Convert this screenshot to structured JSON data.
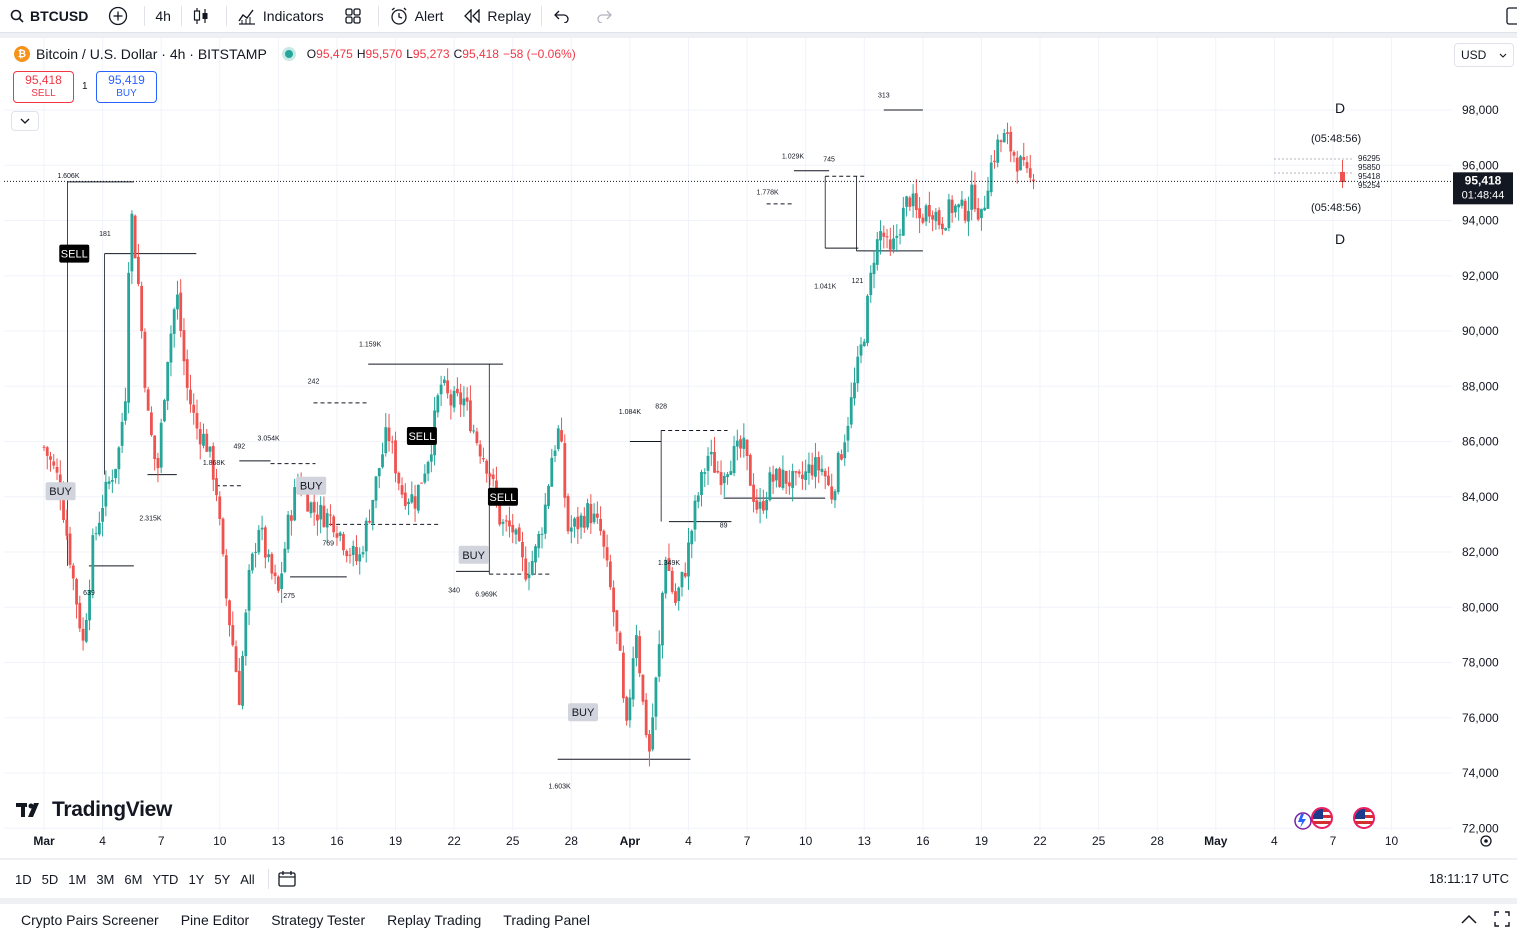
{
  "toolbar": {
    "symbol": "BTCUSD",
    "interval": "4h",
    "indicators_label": "Indicators",
    "alert_label": "Alert",
    "replay_label": "Replay"
  },
  "legend": {
    "title": "Bitcoin / U.S. Dollar · 4h · BITSTAMP",
    "coin_glyph": "₿",
    "ohlc": [
      {
        "k": "O",
        "v": "95,475"
      },
      {
        "k": "H",
        "v": "95,570"
      },
      {
        "k": "L",
        "v": "95,273"
      },
      {
        "k": "C",
        "v": "95,418"
      }
    ],
    "change": "−58 (−0.06%)"
  },
  "trade": {
    "sell_price": "95,418",
    "sell_label": "SELL",
    "buy_price": "95,419",
    "buy_label": "BUY",
    "quantity": "1"
  },
  "currency": "USD",
  "watermark": "TradingView",
  "range_buttons": [
    "1D",
    "5D",
    "1M",
    "3M",
    "6M",
    "YTD",
    "1Y",
    "5Y",
    "All"
  ],
  "clock": "18:11:17 UTC",
  "bottom_tabs": [
    "Crypto Pairs Screener",
    "Pine Editor",
    "Strategy Tester",
    "Replay Trading",
    "Trading Panel"
  ],
  "colors": {
    "up": "#26a69a",
    "down": "#ef5350",
    "grid": "#f0f3fa",
    "accent": "#2962ff",
    "sell": "#f23645"
  },
  "chart_data": {
    "type": "candlestick",
    "price_axis": {
      "ticks": [
        "98,000",
        "96,000",
        "94,000",
        "92,000",
        "90,000",
        "88,000",
        "86,000",
        "84,000",
        "82,000",
        "80,000",
        "78,000",
        "76,000",
        "74,000",
        "72,000"
      ],
      "range": [
        72000,
        99600
      ]
    },
    "time_axis": {
      "ticks": [
        "Mar",
        "4",
        "7",
        "10",
        "13",
        "16",
        "19",
        "22",
        "25",
        "28",
        "Apr",
        "4",
        "7",
        "10",
        "13",
        "16",
        "19",
        "22",
        "25",
        "28",
        "May",
        "4",
        "7",
        "10"
      ]
    },
    "last_price": {
      "price": "95,418",
      "countdown": "01:48:44",
      "value": 95418
    },
    "anchor_points": [
      [
        0,
        85800
      ],
      [
        0.8,
        84500
      ],
      [
        1.5,
        81000
      ],
      [
        2,
        78700
      ],
      [
        2.5,
        82200
      ],
      [
        3,
        83800
      ],
      [
        3.8,
        85500
      ],
      [
        4.2,
        88000
      ],
      [
        4.4,
        94800
      ],
      [
        4.8,
        92000
      ],
      [
        5.3,
        87000
      ],
      [
        5.8,
        84800
      ],
      [
        6.3,
        89000
      ],
      [
        6.8,
        91400
      ],
      [
        7.3,
        88000
      ],
      [
        7.8,
        86500
      ],
      [
        8.3,
        86000
      ],
      [
        8.8,
        84500
      ],
      [
        9.3,
        80500
      ],
      [
        9.7,
        78500
      ],
      [
        10,
        76800
      ],
      [
        10.5,
        81000
      ],
      [
        11,
        83000
      ],
      [
        11.5,
        81500
      ],
      [
        12,
        80500
      ],
      [
        12.5,
        83000
      ],
      [
        13,
        84600
      ],
      [
        13.8,
        83500
      ],
      [
        14.8,
        83200
      ],
      [
        15.5,
        82200
      ],
      [
        16.1,
        81600
      ],
      [
        16.6,
        83200
      ],
      [
        17.2,
        85200
      ],
      [
        17.6,
        86400
      ],
      [
        18.3,
        84200
      ],
      [
        19,
        83900
      ],
      [
        19.8,
        85800
      ],
      [
        20.3,
        88100
      ],
      [
        20.8,
        87400
      ],
      [
        21.5,
        87500
      ],
      [
        22.2,
        86000
      ],
      [
        22.8,
        85000
      ],
      [
        23.4,
        83000
      ],
      [
        24,
        82800
      ],
      [
        24.6,
        81300
      ],
      [
        25.1,
        81800
      ],
      [
        25.6,
        83300
      ],
      [
        26,
        85500
      ],
      [
        26.4,
        86500
      ],
      [
        26.8,
        82800
      ],
      [
        27.3,
        83000
      ],
      [
        27.9,
        83500
      ],
      [
        28.5,
        82700
      ],
      [
        29.1,
        80200
      ],
      [
        29.5,
        78000
      ],
      [
        29.8,
        75200
      ],
      [
        30.3,
        79500
      ],
      [
        30.7,
        76200
      ],
      [
        31,
        74800
      ],
      [
        31.5,
        78500
      ],
      [
        31.8,
        82100
      ],
      [
        32.3,
        80100
      ],
      [
        32.8,
        81300
      ],
      [
        33.4,
        83800
      ],
      [
        34,
        85500
      ],
      [
        34.6,
        84800
      ],
      [
        35.2,
        85400
      ],
      [
        35.8,
        85800
      ],
      [
        36.3,
        84200
      ],
      [
        36.6,
        83400
      ],
      [
        37.2,
        84600
      ],
      [
        37.9,
        84700
      ],
      [
        38.6,
        84400
      ],
      [
        39.3,
        85100
      ],
      [
        39.9,
        85000
      ],
      [
        40.3,
        84000
      ],
      [
        40.9,
        85900
      ],
      [
        41.5,
        88000
      ],
      [
        42,
        90000
      ],
      [
        42.5,
        92800
      ],
      [
        42.9,
        93700
      ],
      [
        43.3,
        92600
      ],
      [
        43.8,
        93800
      ],
      [
        44.3,
        94900
      ],
      [
        44.8,
        94000
      ],
      [
        45.4,
        94600
      ],
      [
        45.9,
        93900
      ],
      [
        46.5,
        94500
      ],
      [
        47.1,
        94300
      ],
      [
        47.6,
        95000
      ],
      [
        48,
        94000
      ],
      [
        48.4,
        95800
      ],
      [
        48.8,
        96700
      ],
      [
        49.2,
        97000
      ],
      [
        49.6,
        96500
      ],
      [
        50,
        96000
      ],
      [
        50.4,
        95400
      ],
      [
        50.7,
        95418
      ]
    ],
    "annotations": [
      {
        "label": "1.606K",
        "day": 1.25,
        "price": 95400,
        "pos": "above"
      },
      {
        "label": "181",
        "day": 3.12,
        "price": 93300,
        "pos": "above"
      },
      {
        "label": "639",
        "day": 2.3,
        "price": 80800,
        "pos": "below"
      },
      {
        "label": "2.315K",
        "day": 5.45,
        "price": 83500,
        "pos": "below"
      },
      {
        "label": "1.868K",
        "day": 8.7,
        "price": 85000,
        "pos": "above"
      },
      {
        "label": "492",
        "day": 10.0,
        "price": 85600,
        "pos": "above"
      },
      {
        "label": "3.054K",
        "day": 11.5,
        "price": 85900,
        "pos": "above"
      },
      {
        "label": "275",
        "day": 12.55,
        "price": 80700,
        "pos": "below"
      },
      {
        "label": "242",
        "day": 13.8,
        "price": 87950,
        "pos": "above"
      },
      {
        "label": "769",
        "day": 14.55,
        "price": 82600,
        "pos": "below"
      },
      {
        "label": "1.159K",
        "day": 16.7,
        "price": 89300,
        "pos": "above"
      },
      {
        "label": "340",
        "day": 21.0,
        "price": 80900,
        "pos": "below"
      },
      {
        "label": "6.969K",
        "day": 22.65,
        "price": 80750,
        "pos": "below"
      },
      {
        "label": "1.603K",
        "day": 26.4,
        "price": 73800,
        "pos": "below"
      },
      {
        "label": "1.084K",
        "day": 30.0,
        "price": 86850,
        "pos": "above"
      },
      {
        "label": "828",
        "day": 31.6,
        "price": 87050,
        "pos": "above"
      },
      {
        "label": "1.349K",
        "day": 32.0,
        "price": 81900,
        "pos": "below"
      },
      {
        "label": "89",
        "day": 34.8,
        "price": 83250,
        "pos": "below"
      },
      {
        "label": "1.778K",
        "day": 37.05,
        "price": 94800,
        "pos": "above"
      },
      {
        "label": "1.029K",
        "day": 38.35,
        "price": 96100,
        "pos": "above"
      },
      {
        "label": "745",
        "day": 40.2,
        "price": 96000,
        "pos": "above"
      },
      {
        "label": "1.041K",
        "day": 40.0,
        "price": 91900,
        "pos": "below"
      },
      {
        "label": "121",
        "day": 41.65,
        "price": 92100,
        "pos": "below"
      },
      {
        "label": "313",
        "day": 43.0,
        "price": 98300,
        "pos": "above"
      }
    ],
    "signals": [
      {
        "label": "SELL",
        "type": "sell",
        "day": 1.55,
        "price": 92800
      },
      {
        "label": "BUY",
        "type": "buy",
        "day": 0.85,
        "price": 84200
      },
      {
        "label": "BUY",
        "type": "buy",
        "day": 13.68,
        "price": 84400
      },
      {
        "label": "SELL",
        "type": "sell",
        "day": 19.35,
        "price": 86200
      },
      {
        "label": "BUY",
        "type": "buy",
        "day": 22.0,
        "price": 81900
      },
      {
        "label": "SELL",
        "type": "sell",
        "day": 23.5,
        "price": 84000
      },
      {
        "label": "BUY",
        "type": "buy",
        "day": 27.6,
        "price": 76200
      }
    ],
    "right_labels": {
      "top_D": "D",
      "bottom_D": "D",
      "countdown_top": "(05:48:56)",
      "countdown_bottom": "(05:48:56)",
      "small_prices": [
        "96295",
        "95850",
        "95418",
        "95254"
      ]
    }
  }
}
